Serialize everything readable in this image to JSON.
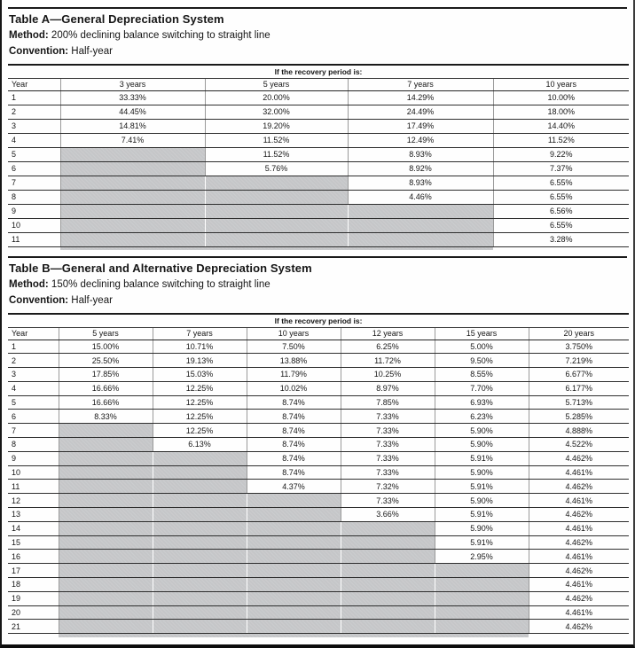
{
  "page": {
    "colors": {
      "shade": "#c5c6c8",
      "rule": "#1a1a1a"
    },
    "tables": [
      {
        "title": "Table A—General Depreciation System",
        "method_label": "Method:",
        "method_text": "200% declining balance switching to straight line",
        "convention_label": "Convention:",
        "convention_text": "Half-year",
        "spanner": "If the recovery period is:",
        "year_header": "Year",
        "columns": [
          "3 years",
          "5 years",
          "7 years",
          "10 years"
        ],
        "rows": [
          [
            "1",
            "33.33%",
            "20.00%",
            "14.29%",
            "10.00%"
          ],
          [
            "2",
            "44.45%",
            "32.00%",
            "24.49%",
            "18.00%"
          ],
          [
            "3",
            "14.81%",
            "19.20%",
            "17.49%",
            "14.40%"
          ],
          [
            "4",
            "7.41%",
            "11.52%",
            "12.49%",
            "11.52%"
          ],
          [
            "5",
            null,
            "11.52%",
            "8.93%",
            "9.22%"
          ],
          [
            "6",
            null,
            "5.76%",
            "8.92%",
            "7.37%"
          ],
          [
            "7",
            null,
            null,
            "8.93%",
            "6.55%"
          ],
          [
            "8",
            null,
            null,
            "4.46%",
            "6.55%"
          ],
          [
            "9",
            null,
            null,
            null,
            "6.56%"
          ],
          [
            "10",
            null,
            null,
            null,
            "6.55%"
          ],
          [
            "11",
            null,
            null,
            null,
            "3.28%"
          ]
        ]
      },
      {
        "title": "Table B—General and Alternative Depreciation System",
        "method_label": "Method:",
        "method_text": "150% declining balance switching to straight line",
        "convention_label": "Convention:",
        "convention_text": "Half-year",
        "spanner": "If the recovery period is:",
        "year_header": "Year",
        "columns": [
          "5 years",
          "7 years",
          "10 years",
          "12 years",
          "15 years",
          "20 years"
        ],
        "rows": [
          [
            "1",
            "15.00%",
            "10.71%",
            "7.50%",
            "6.25%",
            "5.00%",
            "3.750%"
          ],
          [
            "2",
            "25.50%",
            "19.13%",
            "13.88%",
            "11.72%",
            "9.50%",
            "7.219%"
          ],
          [
            "3",
            "17.85%",
            "15.03%",
            "11.79%",
            "10.25%",
            "8.55%",
            "6.677%"
          ],
          [
            "4",
            "16.66%",
            "12.25%",
            "10.02%",
            "8.97%",
            "7.70%",
            "6.177%"
          ],
          [
            "5",
            "16.66%",
            "12.25%",
            "8.74%",
            "7.85%",
            "6.93%",
            "5.713%"
          ],
          [
            "6",
            "8.33%",
            "12.25%",
            "8.74%",
            "7.33%",
            "6.23%",
            "5.285%"
          ],
          [
            "7",
            null,
            "12.25%",
            "8.74%",
            "7.33%",
            "5.90%",
            "4.888%"
          ],
          [
            "8",
            null,
            "6.13%",
            "8.74%",
            "7.33%",
            "5.90%",
            "4.522%"
          ],
          [
            "9",
            null,
            null,
            "8.74%",
            "7.33%",
            "5.91%",
            "4.462%"
          ],
          [
            "10",
            null,
            null,
            "8.74%",
            "7.33%",
            "5.90%",
            "4.461%"
          ],
          [
            "11",
            null,
            null,
            "4.37%",
            "7.32%",
            "5.91%",
            "4.462%"
          ],
          [
            "12",
            null,
            null,
            null,
            "7.33%",
            "5.90%",
            "4.461%"
          ],
          [
            "13",
            null,
            null,
            null,
            "3.66%",
            "5.91%",
            "4.462%"
          ],
          [
            "14",
            null,
            null,
            null,
            null,
            "5.90%",
            "4.461%"
          ],
          [
            "15",
            null,
            null,
            null,
            null,
            "5.91%",
            "4.462%"
          ],
          [
            "16",
            null,
            null,
            null,
            null,
            "2.95%",
            "4.461%"
          ],
          [
            "17",
            null,
            null,
            null,
            null,
            null,
            "4.462%"
          ],
          [
            "18",
            null,
            null,
            null,
            null,
            null,
            "4.461%"
          ],
          [
            "19",
            null,
            null,
            null,
            null,
            null,
            "4.462%"
          ],
          [
            "20",
            null,
            null,
            null,
            null,
            null,
            "4.461%"
          ],
          [
            "21",
            null,
            null,
            null,
            null,
            null,
            "4.462%"
          ]
        ]
      }
    ]
  }
}
